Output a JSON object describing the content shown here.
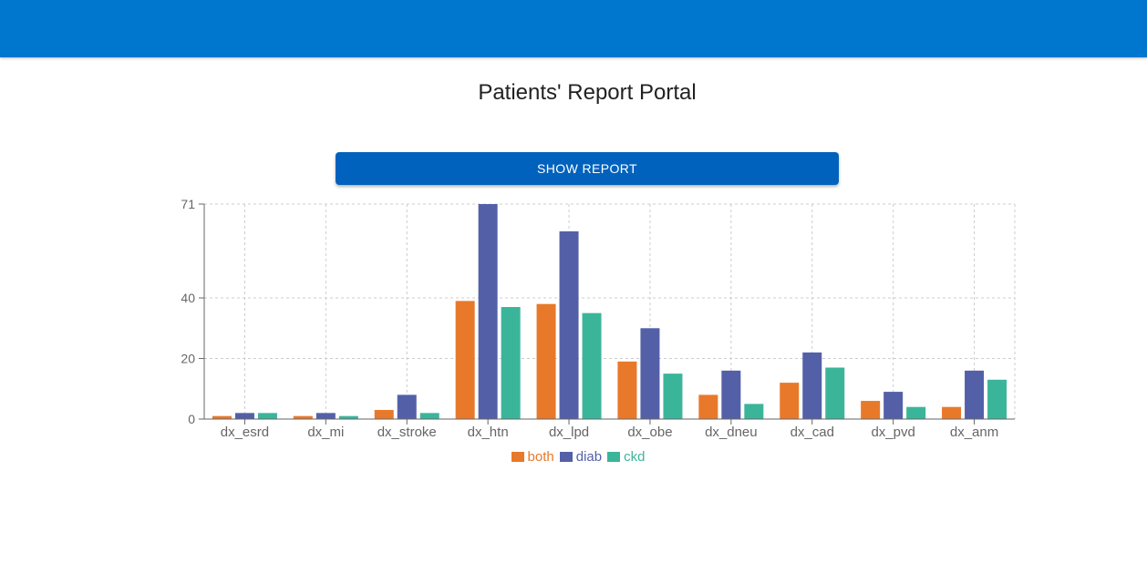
{
  "page": {
    "title": "Patients' Report Portal",
    "button_label": "SHOW REPORT"
  },
  "colors": {
    "app_bar": "#0077cf",
    "button": "#0062bd"
  },
  "chart_data": {
    "type": "bar",
    "title": "",
    "xlabel": "",
    "ylabel": "",
    "categories": [
      "dx_esrd",
      "dx_mi",
      "dx_stroke",
      "dx_htn",
      "dx_lpd",
      "dx_obe",
      "dx_dneu",
      "dx_cad",
      "dx_pvd",
      "dx_anm"
    ],
    "series": [
      {
        "name": "both",
        "color": "#e8792a",
        "values": [
          1,
          1,
          3,
          39,
          38,
          19,
          8,
          12,
          6,
          4
        ]
      },
      {
        "name": "diab",
        "color": "#5360a8",
        "values": [
          2,
          2,
          8,
          71,
          62,
          30,
          16,
          22,
          9,
          16
        ]
      },
      {
        "name": "ckd",
        "color": "#3bb59a",
        "values": [
          2,
          1,
          2,
          37,
          35,
          15,
          5,
          17,
          4,
          13
        ]
      }
    ],
    "ylim": [
      0,
      71
    ],
    "y_ticks": [
      "0",
      "20",
      "40",
      "71"
    ],
    "grid": true,
    "legend_position": "bottom"
  }
}
